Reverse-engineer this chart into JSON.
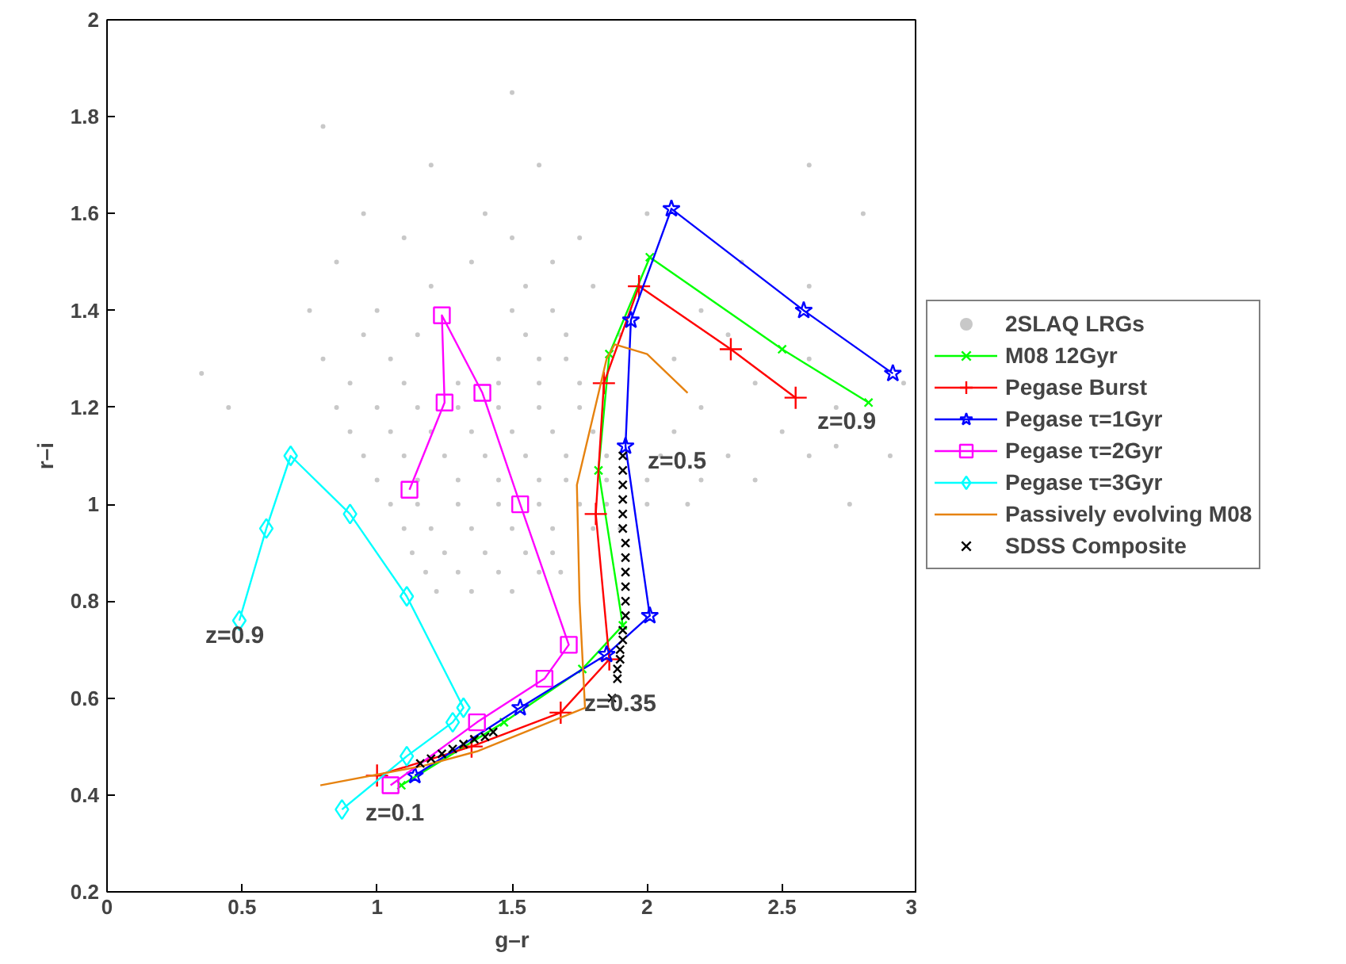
{
  "chart_data": {
    "type": "line",
    "xlabel": "g–r",
    "ylabel": "r–i",
    "xlim": [
      0,
      3
    ],
    "ylim": [
      0.2,
      2
    ],
    "xticks": [
      0,
      0.5,
      1,
      1.5,
      2,
      2.5,
      3
    ],
    "yticks": [
      0.2,
      0.4,
      0.6,
      0.8,
      1,
      1.2,
      1.4,
      1.6,
      1.8,
      2
    ],
    "grid": false,
    "legend": "right",
    "series": [
      {
        "name": "2SLAQ LRGs",
        "type": "scatter",
        "marker": "circle",
        "color": "#c8c8c8",
        "x": [
          1.22,
          1.35,
          1.5,
          1.18,
          1.3,
          1.45,
          1.6,
          1.68,
          1.13,
          1.25,
          1.4,
          1.55,
          1.65,
          1.1,
          1.2,
          1.35,
          1.5,
          1.65,
          1.8,
          1.9,
          1.05,
          1.15,
          1.3,
          1.45,
          1.6,
          1.75,
          1.85,
          2.0,
          2.15,
          1.0,
          1.15,
          1.3,
          1.45,
          1.6,
          1.7,
          1.85,
          2.0,
          2.2,
          2.4,
          0.95,
          1.1,
          1.25,
          1.4,
          1.55,
          1.7,
          1.85,
          2.05,
          2.3,
          2.6,
          0.9,
          1.05,
          1.2,
          1.35,
          1.5,
          1.65,
          1.8,
          2.1,
          2.5,
          0.85,
          1.0,
          1.15,
          1.3,
          1.45,
          1.6,
          1.75,
          2.2,
          2.7,
          0.9,
          1.1,
          1.3,
          1.45,
          1.6,
          1.75,
          2.4,
          2.95,
          0.8,
          1.05,
          1.45,
          1.6,
          1.7,
          2.1,
          2.6,
          0.95,
          1.15,
          1.55,
          1.7,
          1.9,
          2.3,
          0.75,
          1.0,
          1.5,
          1.65,
          2.2,
          1.2,
          1.55,
          1.8,
          2.6,
          0.85,
          1.35,
          1.65,
          2.35,
          1.1,
          1.5,
          1.75,
          0.95,
          1.4,
          2.0,
          1.2,
          1.6,
          2.6,
          0.8,
          1.5,
          0.35,
          0.45,
          2.8,
          2.75,
          2.9,
          2.7
        ],
        "values": [
          0.82,
          0.82,
          0.82,
          0.86,
          0.86,
          0.86,
          0.86,
          0.86,
          0.9,
          0.9,
          0.9,
          0.9,
          0.9,
          0.95,
          0.95,
          0.95,
          0.95,
          0.95,
          0.95,
          0.95,
          1.0,
          1.0,
          1.0,
          1.0,
          1.0,
          1.0,
          1.0,
          1.0,
          1.0,
          1.05,
          1.05,
          1.05,
          1.05,
          1.05,
          1.05,
          1.05,
          1.05,
          1.05,
          1.05,
          1.1,
          1.1,
          1.1,
          1.1,
          1.1,
          1.1,
          1.1,
          1.1,
          1.1,
          1.1,
          1.15,
          1.15,
          1.15,
          1.15,
          1.15,
          1.15,
          1.15,
          1.15,
          1.15,
          1.2,
          1.2,
          1.2,
          1.2,
          1.2,
          1.2,
          1.2,
          1.2,
          1.2,
          1.25,
          1.25,
          1.25,
          1.25,
          1.25,
          1.25,
          1.25,
          1.25,
          1.3,
          1.3,
          1.3,
          1.3,
          1.3,
          1.3,
          1.3,
          1.35,
          1.35,
          1.35,
          1.35,
          1.35,
          1.35,
          1.4,
          1.4,
          1.4,
          1.4,
          1.4,
          1.45,
          1.45,
          1.45,
          1.45,
          1.5,
          1.5,
          1.5,
          1.5,
          1.55,
          1.55,
          1.55,
          1.6,
          1.6,
          1.6,
          1.7,
          1.7,
          1.7,
          1.78,
          1.85,
          1.27,
          1.2,
          1.6,
          1.0,
          1.1,
          1.12
        ]
      },
      {
        "name": "M08 12Gyr",
        "marker": "x",
        "color": "#00ff00",
        "x": [
          1.09,
          1.47,
          1.76,
          1.91,
          1.82,
          1.86,
          2.01,
          2.5,
          2.82
        ],
        "values": [
          0.42,
          0.55,
          0.66,
          0.75,
          1.07,
          1.31,
          1.51,
          1.32,
          1.21
        ]
      },
      {
        "name": "Pegase Burst",
        "marker": "cross",
        "color": "#ff0000",
        "x": [
          1.0,
          1.35,
          1.68,
          1.86,
          1.81,
          1.84,
          1.97,
          2.31,
          2.55
        ],
        "values": [
          0.44,
          0.5,
          0.57,
          0.68,
          0.98,
          1.25,
          1.45,
          1.32,
          1.22
        ]
      },
      {
        "name": "Pegase τ=1Gyr",
        "marker": "star",
        "color": "#0000ff",
        "x": [
          1.14,
          1.53,
          1.85,
          2.01,
          1.92,
          1.94,
          2.09,
          2.58,
          2.91
        ],
        "values": [
          0.44,
          0.58,
          0.69,
          0.77,
          1.12,
          1.38,
          1.61,
          1.4,
          1.27
        ]
      },
      {
        "name": "Pegase τ=2Gyr",
        "marker": "square",
        "color": "#ff00ff",
        "x": [
          1.05,
          1.37,
          1.62,
          1.71,
          1.53,
          1.39,
          1.24,
          1.25,
          1.12
        ],
        "values": [
          0.42,
          0.55,
          0.64,
          0.71,
          1.0,
          1.23,
          1.39,
          1.21,
          1.03
        ]
      },
      {
        "name": "Pegase τ=3Gyr",
        "marker": "diamond",
        "color": "#00ffff",
        "x": [
          0.87,
          1.11,
          1.28,
          1.32,
          1.11,
          0.9,
          0.68,
          0.59,
          0.49
        ],
        "values": [
          0.37,
          0.48,
          0.55,
          0.58,
          0.81,
          0.98,
          1.1,
          0.95,
          0.76
        ]
      },
      {
        "name": "Passively evolving M08",
        "marker": "none",
        "color": "#e6820f",
        "x": [
          0.79,
          1.17,
          1.37,
          1.77,
          1.75,
          1.74,
          1.85,
          1.88,
          2.0,
          2.15
        ],
        "values": [
          0.42,
          0.46,
          0.49,
          0.58,
          0.8,
          1.04,
          1.3,
          1.33,
          1.31,
          1.23
        ]
      },
      {
        "name": "SDSS Composite",
        "type": "scatter",
        "marker": "x",
        "color": "#000000",
        "x": [
          1.16,
          1.2,
          1.24,
          1.28,
          1.32,
          1.36,
          1.4,
          1.43,
          1.87,
          1.89,
          1.89,
          1.9,
          1.9,
          1.91,
          1.91,
          1.92,
          1.92,
          1.92,
          1.92,
          1.92,
          1.92,
          1.91,
          1.91,
          1.91,
          1.91,
          1.91,
          1.91
        ],
        "values": [
          0.465,
          0.475,
          0.485,
          0.495,
          0.505,
          0.515,
          0.52,
          0.53,
          0.6,
          0.64,
          0.66,
          0.68,
          0.7,
          0.72,
          0.74,
          0.77,
          0.8,
          0.83,
          0.86,
          0.89,
          0.92,
          0.95,
          0.98,
          1.01,
          1.04,
          1.07,
          1.1
        ]
      }
    ],
    "annotations": [
      "z=0.9",
      "z=0.5",
      "z=0.9",
      "z=0.35",
      "z=0.1"
    ]
  }
}
